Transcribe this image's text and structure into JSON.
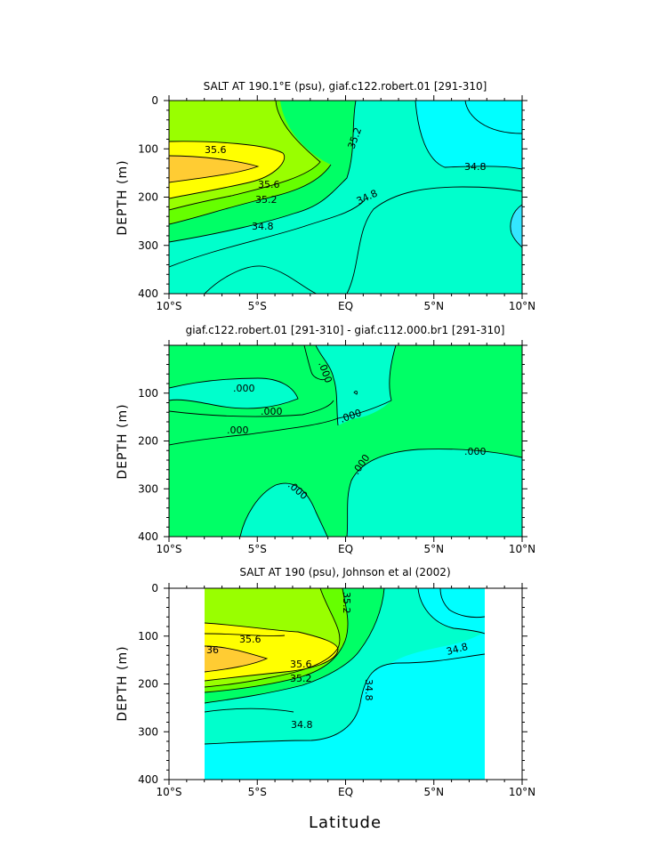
{
  "colors": {
    "c34_8": "#00ffff",
    "c35_0": "#00ffcc",
    "c35_2": "#00ff66",
    "c35_4": "#66ff00",
    "c35_6": "#99ff00",
    "c35_8": "#ffff00",
    "c36_0": "#ffcc33",
    "c34_6": "#33e6ff",
    "diff_pos": "#00ff66",
    "diff_neg": "#00ffcc"
  },
  "figure": {
    "xlabel": "Latitude"
  },
  "chart_data": [
    {
      "type": "contour",
      "title": "SALT AT 190.1°E (psu), giaf.c122.robert.01 [291-310]",
      "ylabel": "DEPTH (m)",
      "xlabel": "",
      "xlim": [
        -10,
        10
      ],
      "ylim": [
        400,
        0
      ],
      "xticks": [
        "10°S",
        "5°S",
        "EQ",
        "5°N",
        "10°N"
      ],
      "yticks": [
        "0",
        "100",
        "200",
        "300",
        "400"
      ],
      "contour_labels": [
        "35.6",
        "35.6",
        "35.2",
        "35.2",
        "34.8",
        "34.8",
        "34.8"
      ]
    },
    {
      "type": "contour",
      "title": "giaf.c122.robert.01 [291-310] - giaf.c112.000.br1 [291-310]",
      "ylabel": "DEPTH (m)",
      "xlabel": "",
      "xlim": [
        -10,
        10
      ],
      "ylim": [
        400,
        0
      ],
      "xticks": [
        "10°S",
        "5°S",
        "EQ",
        "5°N",
        "10°N"
      ],
      "yticks": [
        "100",
        "200",
        "300",
        "400"
      ],
      "contour_labels": [
        ".000",
        ".000",
        ".000",
        ".000",
        ".000",
        ".000",
        ".000"
      ]
    },
    {
      "type": "contour",
      "title": "SALT AT 190 (psu), Johnson et al (2002)",
      "ylabel": "DEPTH (m)",
      "xlabel": "Latitude",
      "xlim": [
        -10,
        10
      ],
      "ylim": [
        400,
        0
      ],
      "data_xrange": [
        -8,
        8
      ],
      "xticks": [
        "10°S",
        "5°S",
        "EQ",
        "5°N",
        "10°N"
      ],
      "yticks": [
        "0",
        "100",
        "200",
        "300",
        "400"
      ],
      "contour_labels": [
        "36",
        "35.6",
        "35.6",
        "35.2",
        "35.2",
        "34.8",
        "34.8",
        "34.8"
      ]
    }
  ]
}
